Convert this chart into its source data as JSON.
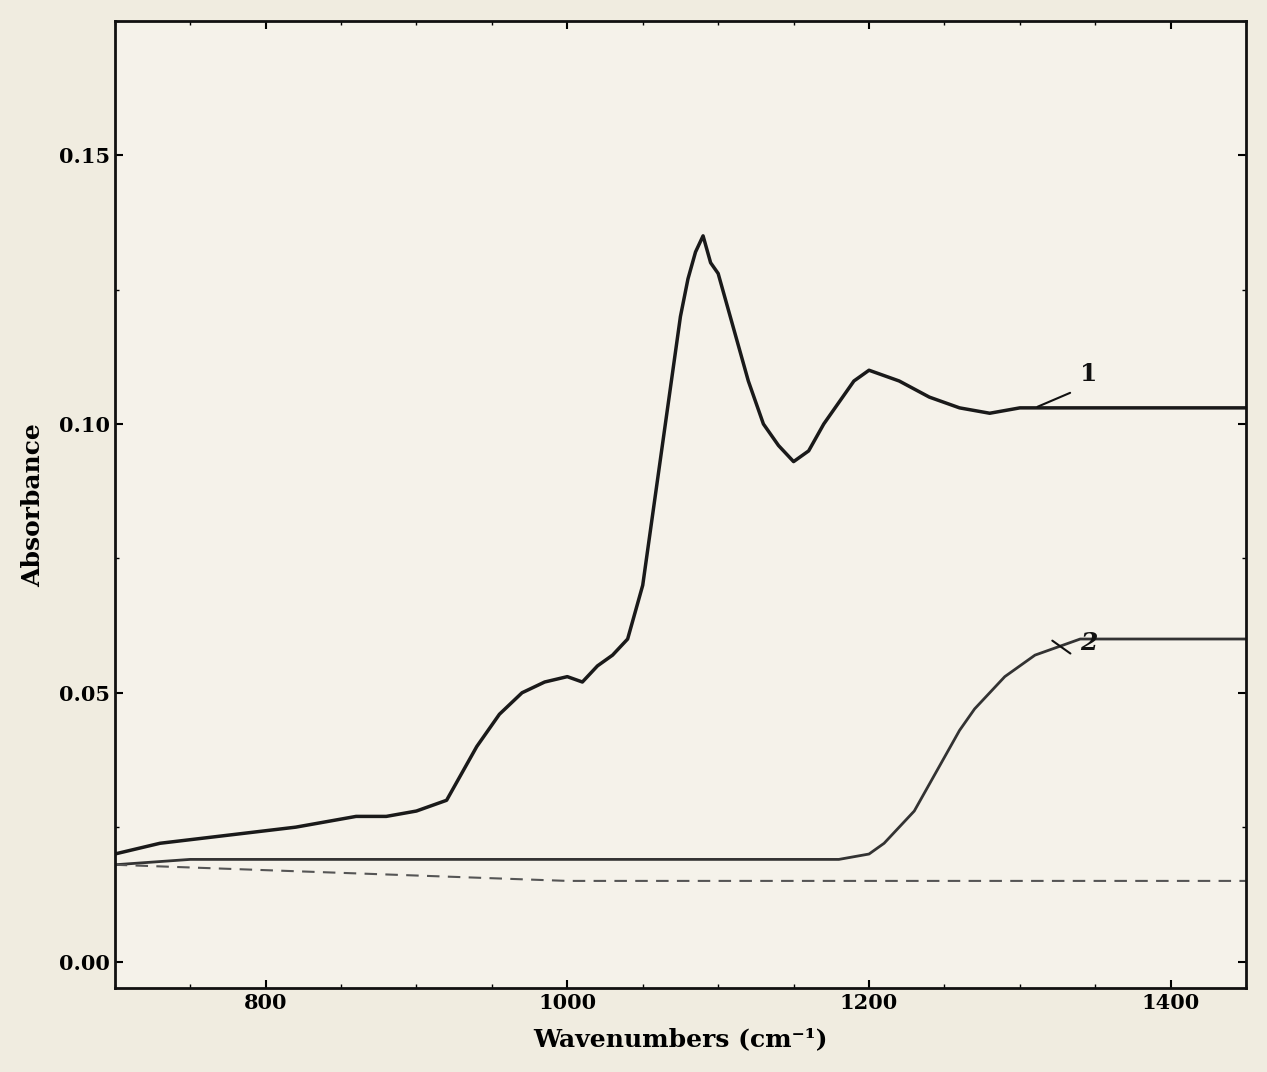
{
  "xlabel": "Wavenumbers (cm⁻¹)",
  "ylabel": "Absorbance",
  "xlim": [
    700,
    1450
  ],
  "ylim": [
    -0.005,
    0.175
  ],
  "xticks": [
    800,
    1000,
    1200,
    1400
  ],
  "yticks": [
    0.0,
    0.05,
    0.1,
    0.15
  ],
  "ytick_labels": [
    "0.00",
    "0.05",
    "0.10",
    "0.15"
  ],
  "line1_color": "#1a1a1a",
  "line2_color": "#333333",
  "dashed_color": "#555555",
  "background_color": "#f5f0e8",
  "label1": "1",
  "label2": "2",
  "curve1_x": [
    700,
    730,
    760,
    790,
    820,
    840,
    860,
    880,
    900,
    920,
    940,
    955,
    970,
    985,
    1000,
    1010,
    1020,
    1030,
    1040,
    1050,
    1055,
    1060,
    1065,
    1070,
    1075,
    1080,
    1085,
    1090,
    1095,
    1100,
    1105,
    1110,
    1115,
    1120,
    1130,
    1140,
    1150,
    1160,
    1170,
    1180,
    1190,
    1200,
    1220,
    1240,
    1260,
    1280,
    1300,
    1320,
    1340,
    1360,
    1380,
    1400,
    1420,
    1440,
    1450
  ],
  "curve1_y": [
    0.02,
    0.022,
    0.023,
    0.024,
    0.025,
    0.026,
    0.027,
    0.027,
    0.028,
    0.03,
    0.04,
    0.046,
    0.05,
    0.052,
    0.053,
    0.052,
    0.055,
    0.057,
    0.06,
    0.07,
    0.08,
    0.09,
    0.1,
    0.11,
    0.12,
    0.127,
    0.132,
    0.135,
    0.13,
    0.128,
    0.123,
    0.118,
    0.113,
    0.108,
    0.1,
    0.096,
    0.093,
    0.095,
    0.1,
    0.104,
    0.108,
    0.11,
    0.108,
    0.105,
    0.103,
    0.102,
    0.103,
    0.103,
    0.103,
    0.103,
    0.103,
    0.103,
    0.103,
    0.103,
    0.103
  ],
  "curve2_x": [
    700,
    750,
    800,
    850,
    900,
    950,
    1000,
    1050,
    1100,
    1150,
    1180,
    1200,
    1210,
    1220,
    1230,
    1240,
    1250,
    1260,
    1270,
    1280,
    1290,
    1300,
    1310,
    1320,
    1330,
    1340,
    1350,
    1360,
    1380,
    1400,
    1420,
    1440,
    1450
  ],
  "curve2_y": [
    0.018,
    0.019,
    0.019,
    0.019,
    0.019,
    0.019,
    0.019,
    0.019,
    0.019,
    0.019,
    0.019,
    0.02,
    0.022,
    0.025,
    0.028,
    0.033,
    0.038,
    0.043,
    0.047,
    0.05,
    0.053,
    0.055,
    0.057,
    0.058,
    0.059,
    0.06,
    0.06,
    0.06,
    0.06,
    0.06,
    0.06,
    0.06,
    0.06
  ],
  "dashed_x": [
    700,
    800,
    900,
    1000,
    1100,
    1200,
    1300,
    1400,
    1450
  ],
  "dashed_y": [
    0.018,
    0.017,
    0.016,
    0.015,
    0.015,
    0.015,
    0.015,
    0.015,
    0.015
  ]
}
